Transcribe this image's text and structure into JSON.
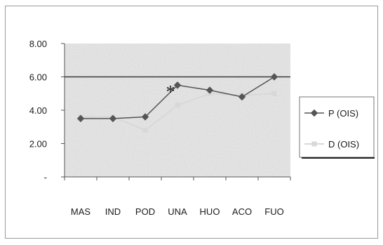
{
  "chart_data": {
    "type": "line",
    "categories": [
      "MAS",
      "IND",
      "POD",
      "UNA",
      "HUO",
      "ACO",
      "FUO"
    ],
    "series": [
      {
        "name": "P (OIS)",
        "values": [
          3.5,
          3.5,
          3.6,
          5.5,
          5.2,
          4.8,
          6.0
        ],
        "color": "#555555",
        "marker": "diamond"
      },
      {
        "name": "D (OIS)",
        "values": [
          3.6,
          3.6,
          2.8,
          4.3,
          5.0,
          4.9,
          5.0
        ],
        "color": "#d8d8d8",
        "marker": "square"
      }
    ],
    "y_ticks": [
      "-",
      "2.00",
      "4.00",
      "6.00",
      "8.00"
    ],
    "ylim": [
      0,
      8
    ],
    "reference_line": 6.0,
    "annotation": {
      "text": "*",
      "category": "UNA"
    },
    "legend_position": "right",
    "plot_background": "#e9e9e9",
    "grid": false
  }
}
